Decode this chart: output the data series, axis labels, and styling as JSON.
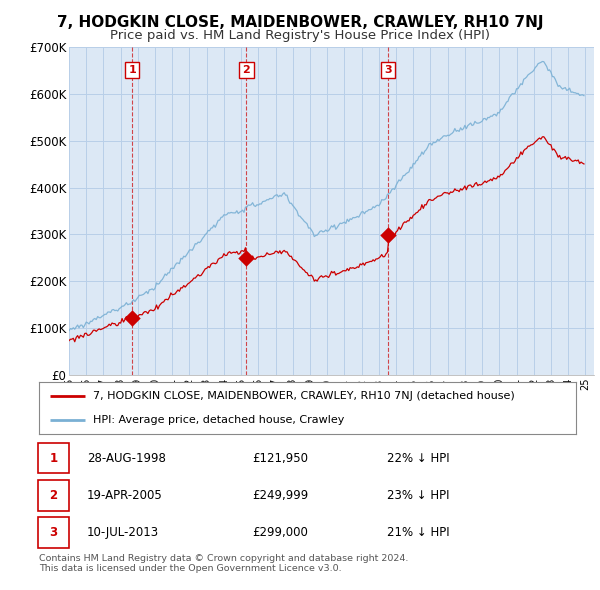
{
  "title": "7, HODGKIN CLOSE, MAIDENBOWER, CRAWLEY, RH10 7NJ",
  "subtitle": "Price paid vs. HM Land Registry's House Price Index (HPI)",
  "ylim": [
    0,
    700000
  ],
  "yticks": [
    0,
    100000,
    200000,
    300000,
    400000,
    500000,
    600000,
    700000
  ],
  "ytick_labels": [
    "£0",
    "£100K",
    "£200K",
    "£300K",
    "£400K",
    "£500K",
    "£600K",
    "£700K"
  ],
  "xlim_start": 1995.0,
  "xlim_end": 2025.5,
  "sale_dates": [
    1998.67,
    2005.3,
    2013.53
  ],
  "sale_prices": [
    121950,
    249999,
    299000
  ],
  "sale_labels": [
    "1",
    "2",
    "3"
  ],
  "property_line_color": "#cc0000",
  "hpi_line_color": "#7ab0d4",
  "chart_bg_color": "#dce8f5",
  "legend_property": "7, HODGKIN CLOSE, MAIDENBOWER, CRAWLEY, RH10 7NJ (detached house)",
  "legend_hpi": "HPI: Average price, detached house, Crawley",
  "table_rows": [
    {
      "num": "1",
      "date": "28-AUG-1998",
      "price": "£121,950",
      "pct": "22% ↓ HPI"
    },
    {
      "num": "2",
      "date": "19-APR-2005",
      "price": "£249,999",
      "pct": "23% ↓ HPI"
    },
    {
      "num": "3",
      "date": "10-JUL-2013",
      "price": "£299,000",
      "pct": "21% ↓ HPI"
    }
  ],
  "footer": "Contains HM Land Registry data © Crown copyright and database right 2024.\nThis data is licensed under the Open Government Licence v3.0.",
  "background_color": "#ffffff",
  "grid_color": "#b8cfe8",
  "title_fontsize": 11,
  "subtitle_fontsize": 9.5
}
